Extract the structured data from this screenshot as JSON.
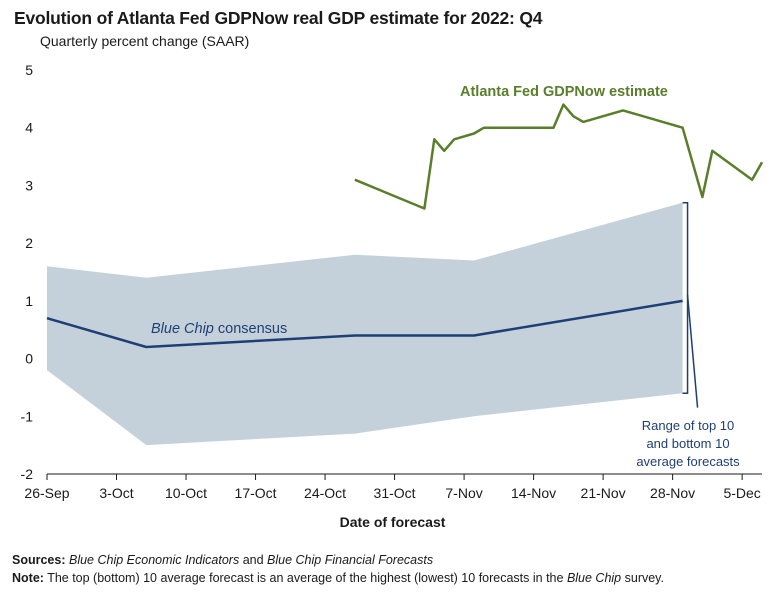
{
  "title": "Evolution of Atlanta Fed GDPNow real GDP estimate for 2022: Q4",
  "subtitle": "Quarterly percent change (SAAR)",
  "footer": {
    "sources_label": "Sources:",
    "sources_part1": "Blue Chip Economic Indicators",
    "sources_part2": " and ",
    "sources_part3": "Blue Chip Financial Forecasts",
    "note_label": "Note:",
    "note_part1": " The top (bottom) 10 average forecast is an average of the highest (lowest) 10 forecasts in the ",
    "note_part2": "Blue Chip",
    "note_part3": " survey."
  },
  "colors": {
    "gdpnow": "#5a7e2a",
    "bluechip": "#1f3f74",
    "range_fill": "#c5d1da",
    "axis": "#1a1a1a"
  },
  "chart_data": {
    "type": "line",
    "xlabel": "Date of forecast",
    "ylabel": "Quarterly percent change (SAAR)",
    "x_ticks": [
      "26-Sep",
      "3-Oct",
      "10-Oct",
      "17-Oct",
      "24-Oct",
      "31-Oct",
      "7-Nov",
      "14-Nov",
      "21-Nov",
      "28-Nov",
      "5-Dec"
    ],
    "y_ticks": [
      "5",
      "4",
      "3",
      "2",
      "1",
      "0",
      "-1",
      "-2"
    ],
    "xlim": [
      "2022-09-26",
      "2022-12-07"
    ],
    "ylim": [
      -2,
      5
    ],
    "grid": false,
    "series": [
      {
        "name": "Atlanta Fed GDPNow estimate",
        "label_style": "bold",
        "x": [
          "2022-10-27",
          "2022-11-03",
          "2022-11-04",
          "2022-11-05",
          "2022-11-06",
          "2022-11-08",
          "2022-11-09",
          "2022-11-16",
          "2022-11-17",
          "2022-11-18",
          "2022-11-19",
          "2022-11-23",
          "2022-11-29",
          "2022-12-01",
          "2022-12-02",
          "2022-12-06",
          "2022-12-07"
        ],
        "y": [
          3.1,
          2.6,
          3.8,
          3.6,
          3.8,
          3.9,
          4.0,
          4.0,
          4.4,
          4.2,
          4.1,
          4.3,
          4.0,
          2.8,
          3.6,
          3.1,
          3.4
        ]
      },
      {
        "name_part1": "Blue Chip",
        "name_part2": " consensus",
        "x": [
          "2022-09-26",
          "2022-10-06",
          "2022-10-27",
          "2022-11-08",
          "2022-11-29"
        ],
        "y": [
          0.7,
          0.2,
          0.4,
          0.4,
          1.0
        ]
      }
    ],
    "range_band": {
      "name": "Range of top 10 and bottom 10 average forecasts",
      "label_lines": [
        "Range of top 10",
        "and bottom 10",
        "average forecasts"
      ],
      "x": [
        "2022-09-26",
        "2022-10-06",
        "2022-10-27",
        "2022-11-08",
        "2022-11-29"
      ],
      "top": [
        1.6,
        1.4,
        1.8,
        1.7,
        2.7
      ],
      "bottom": [
        -0.2,
        -1.5,
        -1.3,
        -1.0,
        -0.6
      ]
    }
  }
}
